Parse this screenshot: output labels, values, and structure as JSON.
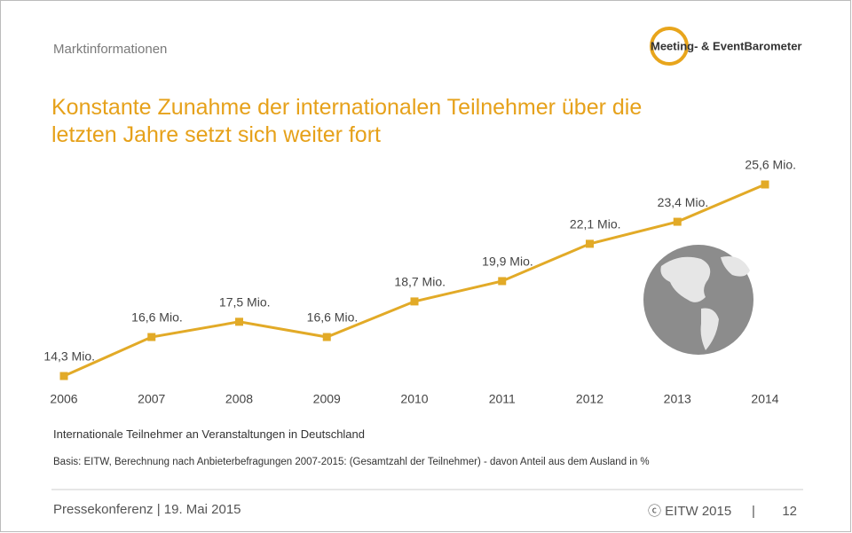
{
  "header": {
    "section": "Marktinformationen",
    "logo": "Meeting- & EventBarometer"
  },
  "chart_data": {
    "type": "line",
    "title": "Konstante Zunahme der internationalen Teilnehmer über die letzten Jahre setzt sich weiter fort",
    "caption": "Internationale Teilnehmer an Veranstaltungen in Deutschland",
    "note": "Basis: EITW, Berechnung nach Anbieterbefragungen 2007-2015: (Gesamtzahl der Teilnehmer) - davon Anteil aus dem Ausland in %",
    "categories": [
      "2006",
      "2007",
      "2008",
      "2009",
      "2010",
      "2011",
      "2012",
      "2013",
      "2014"
    ],
    "series": [
      {
        "name": "Internationale Teilnehmer",
        "color": "#e2aa27",
        "values": [
          14.3,
          16.6,
          17.5,
          16.6,
          18.7,
          19.9,
          22.1,
          23.4,
          25.6
        ],
        "value_labels": [
          "14,3 Mio.",
          "16,6 Mio.",
          "17,5 Mio.",
          "16,6 Mio.",
          "18,7 Mio.",
          "19,9 Mio.",
          "22,1 Mio.",
          "23,4 Mio.",
          "25,6 Mio."
        ]
      }
    ]
  },
  "footer": {
    "event": "Pressekonferenz | 19. Mai 2015",
    "copyright": "ⓒ EITW 2015",
    "separator": "|",
    "page": "12"
  }
}
